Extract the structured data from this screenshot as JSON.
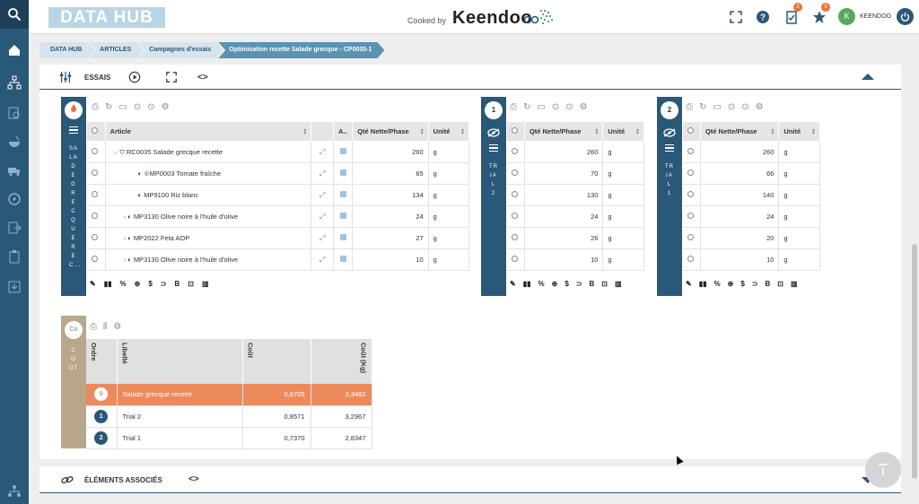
{
  "topbar": {
    "logo": "DATA HUB",
    "cooked_by": "Cooked by",
    "brand": "Keendoo",
    "tasks_badge": "3",
    "favorites_badge": "5",
    "avatar_initial": "K",
    "user_name": "KEENDOO"
  },
  "breadcrumb": [
    "DATA HUB",
    "ARTICLES",
    "Campagnes d'essais",
    "Optimisation recette Salade grecque - CP0035-1"
  ],
  "essais": {
    "title": "ESSAIS",
    "code_toggle": "<>",
    "main": {
      "vertical_label": "SALADE GRECQUE REC...",
      "headers": [
        "Article",
        "A..",
        "Qté Nette/Phase",
        "Unité"
      ],
      "rows": [
        {
          "article": "RC0035 Salade grecque recette",
          "qty": "260",
          "unit": "g"
        },
        {
          "article": "MP0003 Tomate fraîche",
          "qty": "65",
          "unit": "g"
        },
        {
          "article": "MP9100 Riz blanc",
          "qty": "134",
          "unit": "g"
        },
        {
          "article": "MP3130 Olive noire à l'huile d'olive",
          "qty": "24",
          "unit": "g"
        },
        {
          "article": "MP2022 Feta AOP",
          "qty": "27",
          "unit": "g"
        },
        {
          "article": "MP3130 Olive noire à l'huile d'olive",
          "qty": "10",
          "unit": "g"
        }
      ]
    },
    "trials": [
      {
        "number": "1",
        "vertical_label": "TRIAL 2",
        "headers": [
          "Qté Nette/Phase",
          "Unité"
        ],
        "rows": [
          {
            "qty": "260",
            "unit": "g"
          },
          {
            "qty": "70",
            "unit": "g"
          },
          {
            "qty": "130",
            "unit": "g"
          },
          {
            "qty": "24",
            "unit": "g"
          },
          {
            "qty": "26",
            "unit": "g"
          },
          {
            "qty": "10",
            "unit": "g"
          }
        ]
      },
      {
        "number": "2",
        "vertical_label": "TRIAL 1",
        "headers": [
          "Qté Nette/Phase",
          "Unité"
        ],
        "rows": [
          {
            "qty": "260",
            "unit": "g"
          },
          {
            "qty": "66",
            "unit": "g"
          },
          {
            "qty": "140",
            "unit": "g"
          },
          {
            "qty": "24",
            "unit": "g"
          },
          {
            "qty": "20",
            "unit": "g"
          },
          {
            "qty": "10",
            "unit": "g"
          }
        ]
      }
    ],
    "footer_tools": [
      "✎",
      "▮▮",
      "%",
      "⊕",
      "$",
      "⊃",
      "B",
      "⊡",
      "▥"
    ]
  },
  "cost": {
    "circle_label": "Co",
    "vertical_label": "COÛT",
    "headers": [
      "Ordre",
      "Libellé",
      "Coût",
      "Coût (Kg)"
    ],
    "rows": [
      {
        "order": "0",
        "label": "Salade grecque recette",
        "cost": "0,8705",
        "cost_kg": "3,3482"
      },
      {
        "order": "1",
        "label": "Trial 2",
        "cost": "0,8571",
        "cost_kg": "3,2967"
      },
      {
        "order": "2",
        "label": "Trial 1",
        "cost": "0,7370",
        "cost_kg": "2,8347"
      }
    ]
  },
  "related": {
    "title": "ÉLÉMENTS ASSOCIÉS",
    "code_toggle": "<>"
  },
  "colors": {
    "nav": "#2a5878",
    "accent": "#e8733a",
    "highlight": "#ec8a5c",
    "cost_strip": "#b8a78a"
  }
}
